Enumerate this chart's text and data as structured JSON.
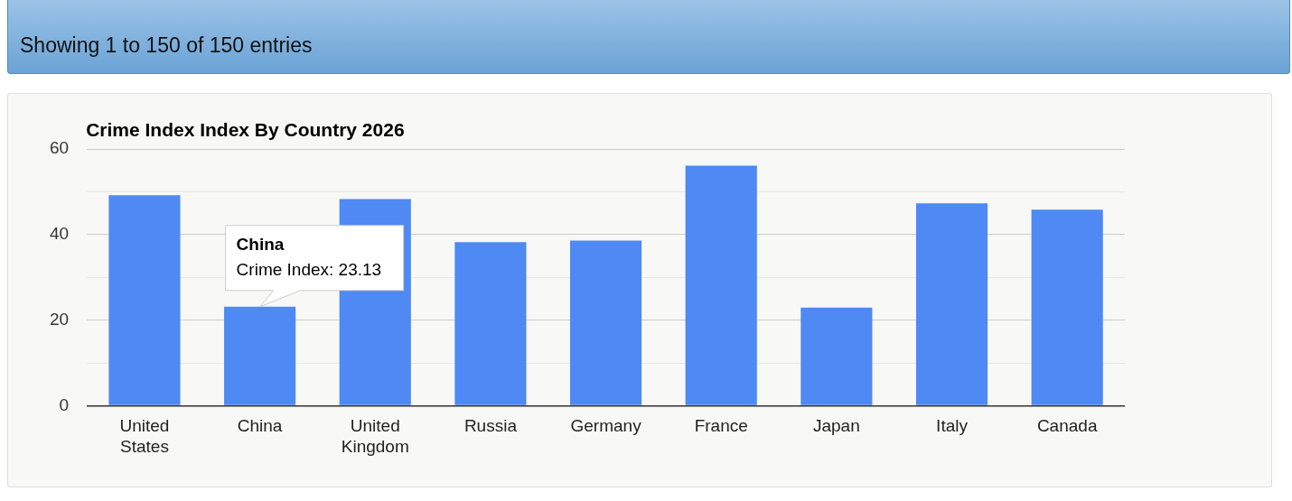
{
  "chart_data": {
    "type": "bar",
    "title": "Crime Index Index By Country 2026",
    "categories": [
      "United States",
      "China",
      "United Kingdom",
      "Russia",
      "Germany",
      "France",
      "Japan",
      "Italy",
      "Canada"
    ],
    "series": [
      {
        "color": "#4e89f4",
        "values": [
          49.2,
          23.13,
          48.3,
          38.2,
          38.6,
          56.1,
          22.9,
          47.3,
          45.8
        ]
      }
    ],
    "ylim": [
      0,
      60
    ],
    "yticks": [
      0,
      {
        "value": 10,
        "label": null
      },
      20,
      {
        "value": 30,
        "label": null
      },
      40,
      {
        "value": 50,
        "label": null
      },
      60
    ],
    "grid": "y",
    "legend": false,
    "annotations": [
      "Showing 1 to 150 of 150 entries",
      "China",
      {
        "text": "Crime Index: 23.13",
        "x": "China",
        "y": 23.13
      }
    ]
  }
}
